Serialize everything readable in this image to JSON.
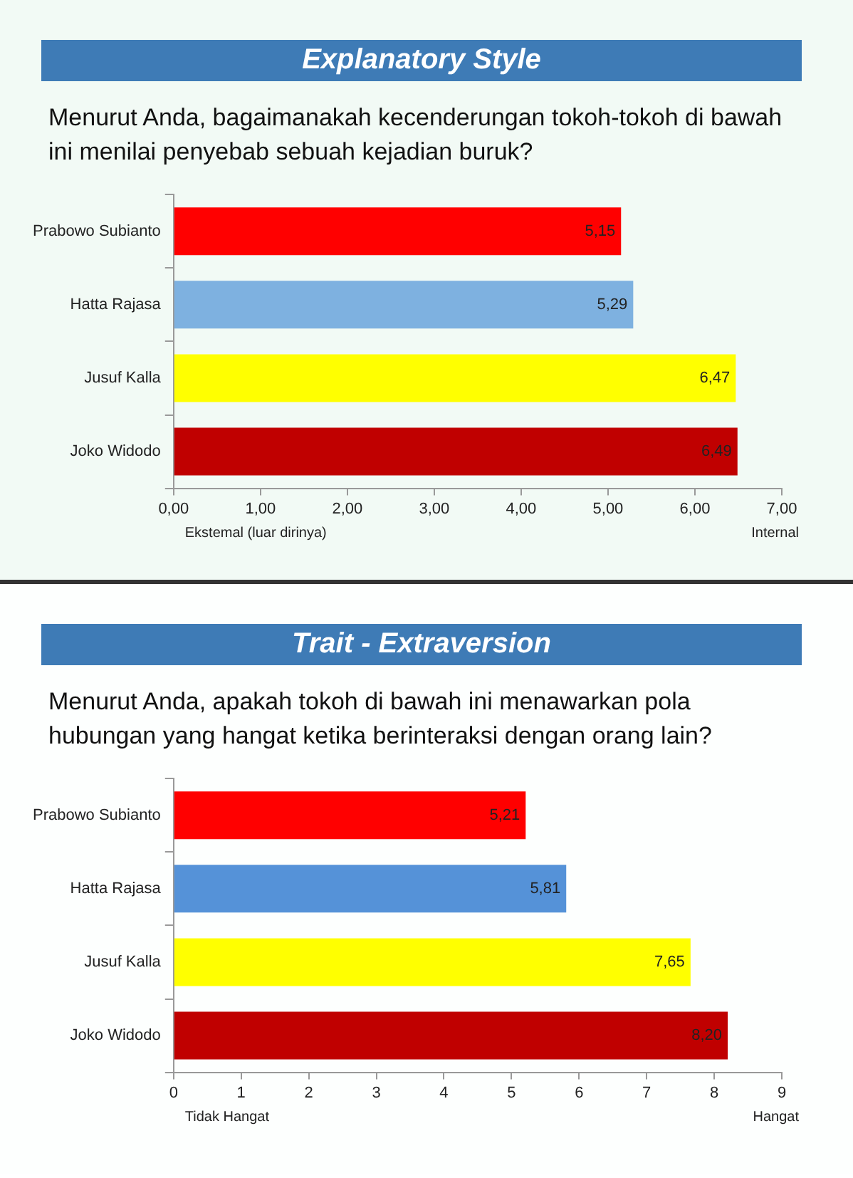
{
  "chart_data": [
    {
      "type": "bar",
      "orientation": "horizontal",
      "title": "Explanatory Style",
      "subtitle": "Menurut Anda, bagaimanakah kecenderungan tokoh-tokoh di bawah ini menilai penyebab sebuah kejadian buruk?",
      "categories": [
        "Prabowo Subianto",
        "Hatta Rajasa",
        "Jusuf Kalla",
        "Joko Widodo"
      ],
      "values": [
        5.15,
        5.29,
        6.47,
        6.49
      ],
      "colors": [
        "#ff0000",
        "#7eb1e0",
        "#ffff00",
        "#c00000"
      ],
      "value_labels": [
        "5,15",
        "5,29",
        "6,47",
        "6,49"
      ],
      "xlim": [
        0,
        7
      ],
      "xticks": [
        {
          "value": 0,
          "label": "0,00"
        },
        {
          "value": 1,
          "label": "1,00"
        },
        {
          "value": 2,
          "label": "2,00"
        },
        {
          "value": 3,
          "label": "3,00"
        },
        {
          "value": 4,
          "label": "4,00"
        },
        {
          "value": 5,
          "label": "5,00"
        },
        {
          "value": 6,
          "label": "6,00"
        },
        {
          "value": 7,
          "label": "7,00"
        }
      ],
      "annotations": [
        "Ekstemal (luar dirinya)",
        "Internal"
      ],
      "grid": false,
      "legend": false
    },
    {
      "type": "bar",
      "orientation": "horizontal",
      "title": "Trait - Extraversion",
      "subtitle": "Menurut Anda, apakah tokoh di bawah ini menawarkan pola hubungan yang hangat ketika berinteraksi dengan orang lain?",
      "categories": [
        "Prabowo Subianto",
        "Hatta Rajasa",
        "Jusuf Kalla",
        "Joko Widodo"
      ],
      "values": [
        5.21,
        5.81,
        7.65,
        8.2
      ],
      "colors": [
        "#ff0000",
        "#5592d8",
        "#ffff00",
        "#c00000"
      ],
      "value_labels": [
        "5,21",
        "5,81",
        "7,65",
        "8,20"
      ],
      "xlim": [
        0,
        9
      ],
      "xticks": [
        0,
        1,
        2,
        3,
        4,
        5,
        6,
        7,
        8,
        9
      ],
      "annotations": [
        "Tidak Hangat",
        "Hangat"
      ],
      "grid": false,
      "legend": false
    }
  ]
}
